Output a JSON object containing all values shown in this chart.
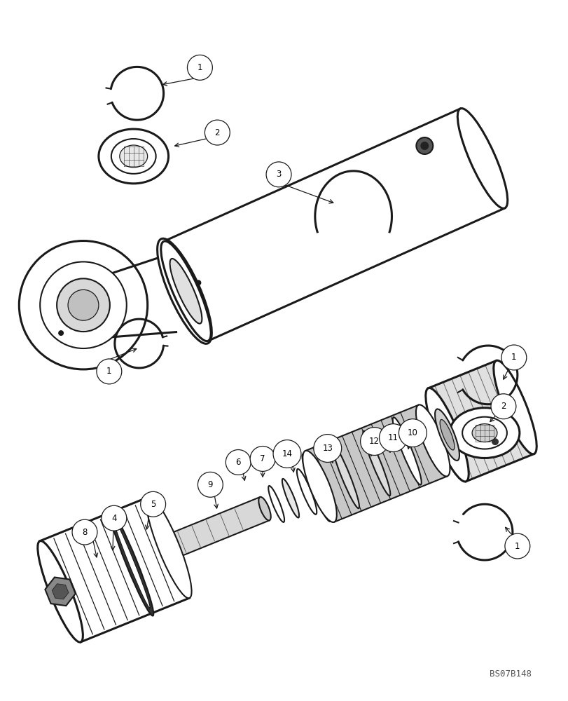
{
  "background_color": "#ffffff",
  "line_color": "#1a1a1a",
  "figure_width": 8.12,
  "figure_height": 10.0,
  "dpi": 100,
  "watermark": "BS07B148",
  "lw": 1.5,
  "lw_thin": 0.9,
  "lw_thick": 2.2,
  "label_r": 0.022,
  "label_fs": 8.5
}
